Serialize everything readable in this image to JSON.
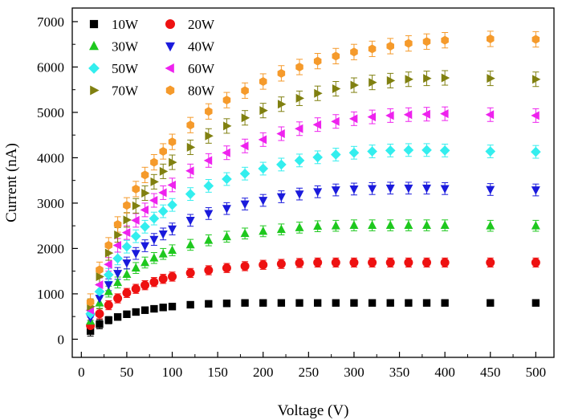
{
  "chart_data": {
    "type": "scatter",
    "xlabel": "Voltage (V)",
    "ylabel": "Current (nA)",
    "xlim": [
      -10,
      520
    ],
    "ylim": [
      -400,
      7300
    ],
    "xticks": [
      0,
      50,
      100,
      150,
      200,
      250,
      300,
      350,
      400,
      450,
      500
    ],
    "yticks": [
      0,
      1000,
      2000,
      3000,
      4000,
      5000,
      6000,
      7000
    ],
    "grid": false,
    "error_bars": true,
    "legend_position": "top-left",
    "x": [
      10,
      20,
      30,
      40,
      50,
      60,
      70,
      80,
      90,
      100,
      120,
      140,
      160,
      180,
      200,
      220,
      240,
      260,
      280,
      300,
      320,
      340,
      360,
      380,
      400,
      450,
      500
    ],
    "series": [
      {
        "name": "10W",
        "marker": "square",
        "color": "#000000",
        "values": [
          180,
          330,
          420,
          490,
          550,
          600,
          640,
          670,
          700,
          720,
          760,
          780,
          790,
          800,
          800,
          800,
          800,
          800,
          800,
          800,
          800,
          800,
          800,
          800,
          800,
          800,
          800
        ],
        "errors": [
          110,
          100,
          80,
          70,
          70,
          70,
          70,
          70,
          70,
          70,
          70,
          70,
          70,
          70,
          70,
          70,
          70,
          70,
          70,
          70,
          70,
          70,
          70,
          70,
          70,
          70,
          70
        ]
      },
      {
        "name": "20W",
        "marker": "circle",
        "color": "#ee1111",
        "values": [
          300,
          560,
          750,
          900,
          1020,
          1110,
          1190,
          1260,
          1330,
          1380,
          1460,
          1520,
          1570,
          1610,
          1640,
          1660,
          1680,
          1690,
          1690,
          1690,
          1690,
          1690,
          1690,
          1690,
          1690,
          1690,
          1690
        ],
        "errors": [
          120,
          110,
          100,
          100,
          100,
          100,
          100,
          100,
          100,
          100,
          100,
          100,
          100,
          100,
          100,
          100,
          100,
          100,
          100,
          100,
          100,
          100,
          100,
          100,
          100,
          100,
          100
        ]
      },
      {
        "name": "30W",
        "marker": "triangle-up",
        "color": "#1ec81e",
        "values": [
          400,
          800,
          1050,
          1250,
          1430,
          1570,
          1690,
          1790,
          1880,
          1960,
          2080,
          2180,
          2260,
          2330,
          2380,
          2420,
          2460,
          2490,
          2500,
          2510,
          2510,
          2510,
          2510,
          2510,
          2510,
          2500,
          2500
        ],
        "errors": [
          130,
          120,
          120,
          120,
          120,
          120,
          120,
          120,
          120,
          120,
          120,
          120,
          120,
          120,
          120,
          120,
          120,
          120,
          120,
          120,
          120,
          120,
          120,
          120,
          120,
          120,
          120
        ]
      },
      {
        "name": "40W",
        "marker": "triangle-down",
        "color": "#1a1adc",
        "values": [
          470,
          900,
          1200,
          1450,
          1680,
          1890,
          2060,
          2200,
          2320,
          2430,
          2620,
          2770,
          2880,
          2980,
          3060,
          3140,
          3200,
          3250,
          3290,
          3310,
          3320,
          3330,
          3330,
          3330,
          3320,
          3300,
          3290
        ],
        "errors": [
          140,
          130,
          130,
          130,
          130,
          130,
          130,
          130,
          130,
          130,
          130,
          130,
          130,
          130,
          130,
          130,
          130,
          130,
          130,
          130,
          130,
          130,
          130,
          130,
          130,
          130,
          130
        ]
      },
      {
        "name": "50W",
        "marker": "diamond",
        "color": "#33eeee",
        "values": [
          560,
          1050,
          1420,
          1780,
          2040,
          2270,
          2480,
          2660,
          2820,
          2960,
          3200,
          3380,
          3530,
          3650,
          3760,
          3850,
          3940,
          4010,
          4070,
          4110,
          4140,
          4160,
          4170,
          4170,
          4160,
          4140,
          4130
        ],
        "errors": [
          150,
          140,
          140,
          140,
          140,
          140,
          140,
          140,
          140,
          140,
          140,
          140,
          140,
          140,
          140,
          140,
          140,
          140,
          140,
          140,
          140,
          140,
          140,
          140,
          140,
          140,
          140
        ]
      },
      {
        "name": "60W",
        "marker": "triangle-left",
        "color": "#ee22ee",
        "values": [
          640,
          1200,
          1650,
          2070,
          2350,
          2620,
          2850,
          3060,
          3230,
          3400,
          3710,
          3940,
          4110,
          4260,
          4400,
          4530,
          4640,
          4730,
          4800,
          4860,
          4900,
          4930,
          4950,
          4960,
          4970,
          4950,
          4930
        ],
        "errors": [
          160,
          150,
          150,
          150,
          150,
          150,
          150,
          150,
          150,
          150,
          150,
          150,
          150,
          150,
          150,
          150,
          150,
          150,
          150,
          150,
          150,
          150,
          150,
          150,
          150,
          150,
          150
        ]
      },
      {
        "name": "70W",
        "marker": "triangle-right",
        "color": "#808010",
        "values": [
          720,
          1380,
          1900,
          2300,
          2630,
          2940,
          3220,
          3470,
          3700,
          3900,
          4230,
          4480,
          4700,
          4880,
          5040,
          5180,
          5310,
          5420,
          5520,
          5600,
          5660,
          5700,
          5730,
          5750,
          5760,
          5750,
          5730
        ],
        "errors": [
          170,
          160,
          160,
          160,
          160,
          160,
          160,
          160,
          160,
          160,
          160,
          160,
          160,
          160,
          160,
          160,
          160,
          160,
          160,
          160,
          160,
          160,
          160,
          160,
          160,
          160,
          160
        ]
      },
      {
        "name": "80W",
        "marker": "hexagon",
        "color": "#f59a2b",
        "values": [
          820,
          1530,
          2070,
          2530,
          2950,
          3310,
          3620,
          3900,
          4140,
          4350,
          4720,
          5020,
          5270,
          5480,
          5680,
          5860,
          6000,
          6130,
          6240,
          6330,
          6400,
          6460,
          6520,
          6560,
          6590,
          6620,
          6610
        ],
        "errors": [
          180,
          170,
          170,
          170,
          170,
          170,
          170,
          170,
          170,
          170,
          170,
          170,
          170,
          170,
          170,
          170,
          170,
          170,
          170,
          170,
          170,
          170,
          170,
          170,
          170,
          170,
          170
        ]
      }
    ]
  }
}
